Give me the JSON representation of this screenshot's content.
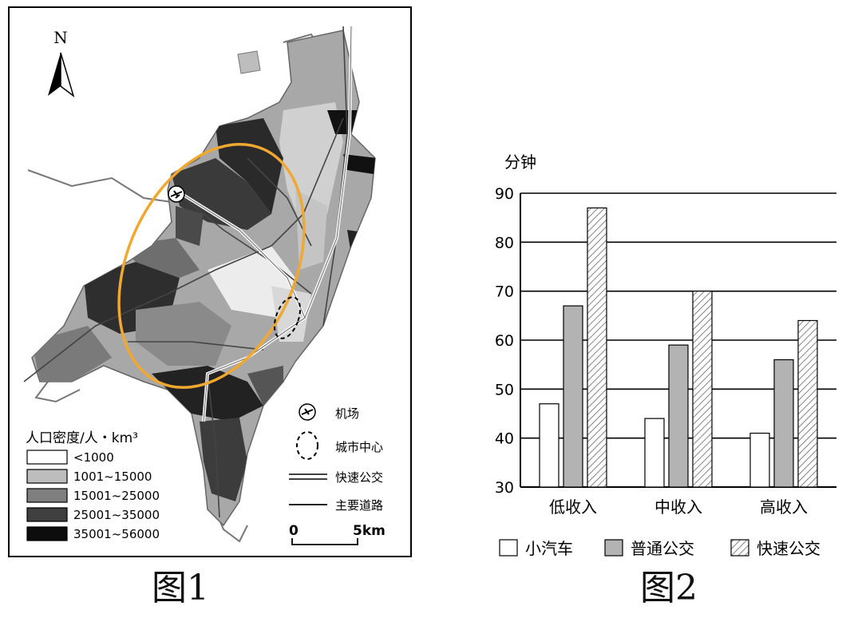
{
  "figure1": {
    "caption": "图1",
    "north_label": "N",
    "density_legend": {
      "title": "人口密度/人・km³",
      "items": [
        {
          "label": "<1000",
          "color": "#ffffff"
        },
        {
          "label": "1001~15000",
          "color": "#bdbdbd"
        },
        {
          "label": "15001~25000",
          "color": "#7f7f7f"
        },
        {
          "label": "25001~35000",
          "color": "#3f3f3f"
        },
        {
          "label": "35001~56000",
          "color": "#0d0d0d"
        }
      ]
    },
    "symbol_legend": {
      "airport": "机场",
      "city_center": "城市中心",
      "brt": "快速公交",
      "main_road": "主要道路"
    },
    "scale": {
      "start": "0",
      "end": "5km"
    },
    "ring_color": "#f0a830"
  },
  "figure2": {
    "caption": "图2",
    "chart_data": {
      "type": "bar",
      "ylabel": "分钟",
      "ylim": [
        30,
        90
      ],
      "yticks": [
        "30",
        "40",
        "50",
        "60",
        "70",
        "80",
        "90"
      ],
      "grid": true,
      "legend_position": "bottom",
      "categories": [
        "低收入",
        "中收入",
        "高收入"
      ],
      "series": [
        {
          "name": "小汽车",
          "values": [
            47,
            44,
            41
          ],
          "fill": "#ffffff",
          "pattern": "none"
        },
        {
          "name": "普通公交",
          "values": [
            67,
            59,
            56
          ],
          "fill": "#b3b3b3",
          "pattern": "none"
        },
        {
          "name": "快速公交",
          "values": [
            87,
            70,
            64
          ],
          "fill": "#ffffff",
          "pattern": "hatch"
        }
      ]
    }
  }
}
